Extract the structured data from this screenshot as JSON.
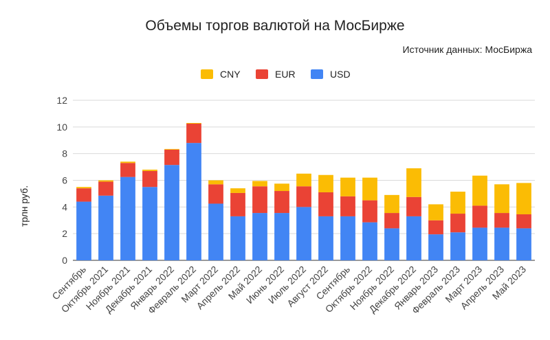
{
  "chart_data": {
    "type": "bar",
    "stacked": true,
    "title": "Объемы торгов валютой на МосБирже",
    "subtitle": "Источник данных: МосБиржа",
    "xlabel": "",
    "ylabel": "трлн руб.",
    "ylim": [
      0,
      12
    ],
    "yticks": [
      0,
      2,
      4,
      6,
      8,
      10,
      12
    ],
    "grid": true,
    "legend_position": "top",
    "categories": [
      "Сентябрь",
      "Октябрь 2021",
      "Ноябрь 2021",
      "Декабрь 2021",
      "Январь 2022",
      "Февраль 2022",
      "Март 2022",
      "Апрель 2022",
      "Май 2022",
      "Июнь 2022",
      "Июль 2022",
      "Август 2022",
      "Сентябрь",
      "Октябрь 2022",
      "Ноябрь 2022",
      "Декабрь 2022",
      "Январь 2023",
      "Февраль 2023",
      "Март 2023",
      "Апрель 2023",
      "Май 2023"
    ],
    "series": [
      {
        "name": "USD",
        "color": "#4285F4",
        "values": [
          4.4,
          4.85,
          6.25,
          5.5,
          7.15,
          8.8,
          4.25,
          3.3,
          3.55,
          3.55,
          4.0,
          3.3,
          3.3,
          2.85,
          2.4,
          3.3,
          1.95,
          2.1,
          2.45,
          2.45,
          2.4
        ]
      },
      {
        "name": "EUR",
        "color": "#EA4335",
        "values": [
          1.0,
          1.05,
          1.05,
          1.2,
          1.15,
          1.45,
          1.45,
          1.75,
          2.0,
          1.65,
          1.55,
          1.8,
          1.5,
          1.65,
          1.15,
          1.45,
          1.05,
          1.4,
          1.65,
          1.1,
          1.05
        ]
      },
      {
        "name": "CNY",
        "color": "#FBBC04",
        "values": [
          0.1,
          0.1,
          0.1,
          0.1,
          0.05,
          0.05,
          0.3,
          0.35,
          0.4,
          0.55,
          0.95,
          1.3,
          1.4,
          1.7,
          1.35,
          2.15,
          1.2,
          1.65,
          2.25,
          2.15,
          2.35
        ]
      }
    ],
    "legend_order": [
      "CNY",
      "EUR",
      "USD"
    ]
  }
}
